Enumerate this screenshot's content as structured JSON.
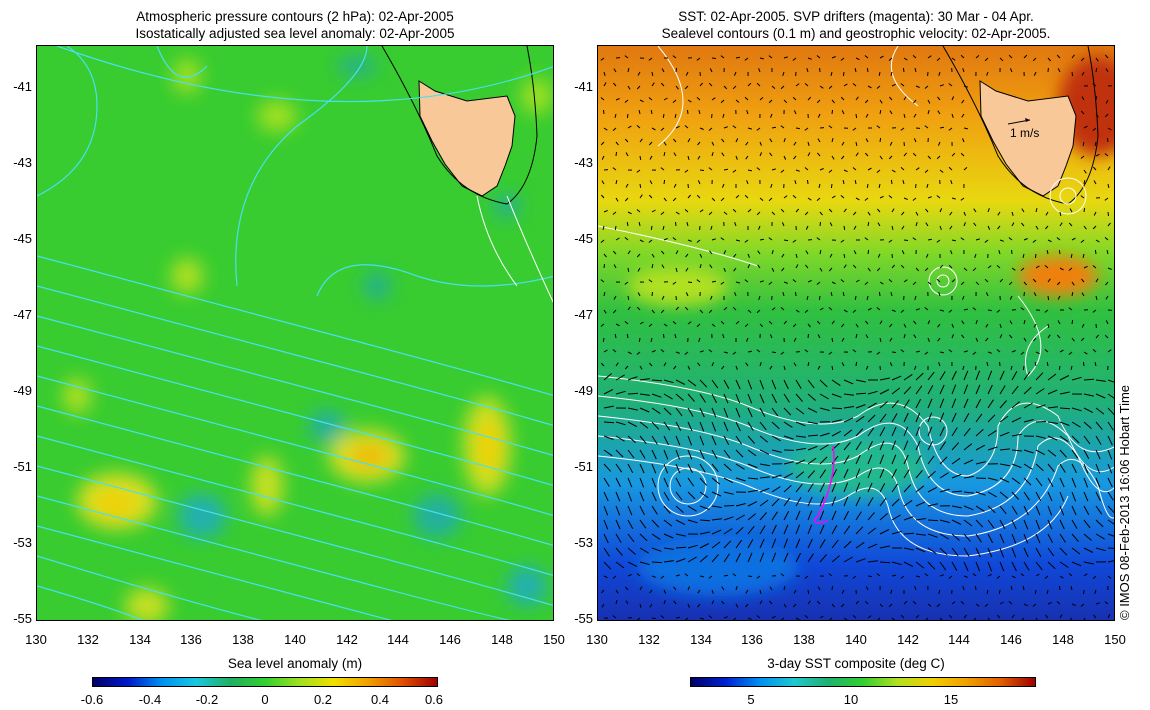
{
  "left_panel": {
    "title_line1": "Atmospheric pressure contours (2 hPa): 02-Apr-2005",
    "title_line2": "Isostatically adjusted sea level anomaly: 02-Apr-2005",
    "colorbar_label": "Sea level anomaly (m)",
    "colorbar_ticks": [
      "-0.6",
      "-0.4",
      "-0.2",
      "0",
      "0.2",
      "0.4",
      "0.6"
    ]
  },
  "right_panel": {
    "title_line1": "SST: 02-Apr-2005. SVP drifters (magenta): 30 Mar - 04 Apr.",
    "title_line2": "Sealevel contours (0.1 m) and geostrophic velocity: 02-Apr-2005.",
    "colorbar_label": "3-day SST composite (deg C)",
    "colorbar_ticks": [
      "5",
      "10",
      "15"
    ],
    "velocity_scale_label": "1 m/s"
  },
  "axes": {
    "lon_ticks": [
      "130",
      "132",
      "134",
      "136",
      "138",
      "140",
      "142",
      "144",
      "146",
      "148",
      "150"
    ],
    "lat_ticks": [
      "-41",
      "-43",
      "-45",
      "-47",
      "-49",
      "-51",
      "-53",
      "-55"
    ]
  },
  "copyright": "© IMOS 08-Feb-2013 16:06 Hobart Time",
  "colors": {
    "land": "#f8c898",
    "sla_background": "#30d030",
    "pressure_contours": "#40e0f0",
    "sst_contours": "#ffffff",
    "drifters": "#ff00ff"
  }
}
